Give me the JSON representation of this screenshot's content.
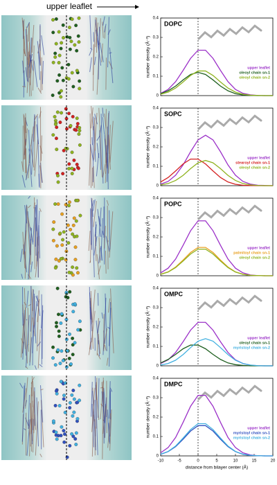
{
  "header": "upper leaflet",
  "chart_data": [
    {
      "type": "line",
      "title": "DOPC",
      "ylabel": "number density (Å⁻³)",
      "x": [
        -10,
        -8,
        -6,
        -4,
        -2,
        0,
        2,
        4,
        6,
        8,
        10,
        12,
        14,
        16,
        18,
        20
      ],
      "xlim": [
        -10,
        20
      ],
      "ylim": [
        0,
        0.4
      ],
      "yticks": [
        0,
        0.1,
        0.2,
        0.3,
        0.4
      ],
      "reference_line_x": 0,
      "series": [
        {
          "name": "upper leaflet",
          "color": "#9b30c8",
          "values": [
            0.012,
            0.032,
            0.072,
            0.13,
            0.192,
            0.234,
            0.234,
            0.192,
            0.13,
            0.072,
            0.032,
            0.012,
            0.004,
            0.001,
            0,
            0
          ]
        },
        {
          "name": "oleoyl chain sn-1",
          "color": "#1f5f1f",
          "values": [
            0.01,
            0.025,
            0.049,
            0.081,
            0.109,
            0.12,
            0.109,
            0.081,
            0.049,
            0.025,
            0.01,
            0.003,
            0.001,
            0,
            0,
            0
          ]
        },
        {
          "name": "oleoyl chain sn-2",
          "color": "#8fb31f",
          "values": [
            0.007,
            0.018,
            0.039,
            0.07,
            0.104,
            0.127,
            0.127,
            0.104,
            0.07,
            0.039,
            0.018,
            0.007,
            0.002,
            0.001,
            0,
            0
          ]
        }
      ]
    },
    {
      "type": "line",
      "title": "SOPC",
      "ylabel": "number density (Å⁻³)",
      "x": [
        -10,
        -8,
        -6,
        -4,
        -2,
        0,
        2,
        4,
        6,
        8,
        10,
        12,
        14,
        16,
        18,
        20
      ],
      "xlim": [
        -10,
        20
      ],
      "ylim": [
        0,
        0.4
      ],
      "yticks": [
        0,
        0.1,
        0.2,
        0.3,
        0.4
      ],
      "reference_line_x": 0,
      "series": [
        {
          "name": "upper leaflet",
          "color": "#9b30c8",
          "values": [
            0.008,
            0.022,
            0.054,
            0.107,
            0.175,
            0.236,
            0.26,
            0.236,
            0.175,
            0.107,
            0.054,
            0.022,
            0.008,
            0.002,
            0.001,
            0
          ]
        },
        {
          "name": "stearoyl chain sn-1",
          "color": "#d42020",
          "values": [
            0.019,
            0.042,
            0.076,
            0.112,
            0.137,
            0.137,
            0.112,
            0.076,
            0.042,
            0.019,
            0.007,
            0.002,
            0.001,
            0,
            0,
            0
          ]
        },
        {
          "name": "oleoyl chain sn-2",
          "color": "#8fb31f",
          "values": [
            0.004,
            0.011,
            0.027,
            0.053,
            0.088,
            0.118,
            0.13,
            0.118,
            0.088,
            0.053,
            0.027,
            0.011,
            0.004,
            0.001,
            0,
            0
          ]
        }
      ]
    },
    {
      "type": "line",
      "title": "POPC",
      "ylabel": "number density (Å⁻³)",
      "x": [
        -10,
        -8,
        -6,
        -4,
        -2,
        0,
        2,
        4,
        6,
        8,
        10,
        12,
        14,
        16,
        18,
        20
      ],
      "xlim": [
        -10,
        20
      ],
      "ylim": [
        0,
        0.4
      ],
      "yticks": [
        0,
        0.1,
        0.2,
        0.3,
        0.4
      ],
      "reference_line_x": 0,
      "series": [
        {
          "name": "upper leaflet",
          "color": "#9b30c8",
          "values": [
            0.015,
            0.039,
            0.086,
            0.157,
            0.232,
            0.283,
            0.283,
            0.232,
            0.157,
            0.086,
            0.039,
            0.015,
            0.004,
            0.001,
            0,
            0
          ]
        },
        {
          "name": "palmitoyl chain sn-1",
          "color": "#e8a020",
          "values": [
            0.008,
            0.02,
            0.045,
            0.081,
            0.12,
            0.146,
            0.146,
            0.12,
            0.081,
            0.045,
            0.02,
            0.008,
            0.002,
            0.001,
            0,
            0
          ]
        },
        {
          "name": "oleoyl chain sn-2",
          "color": "#8fb31f",
          "values": [
            0.007,
            0.019,
            0.042,
            0.076,
            0.112,
            0.137,
            0.137,
            0.112,
            0.076,
            0.042,
            0.019,
            0.007,
            0.002,
            0.001,
            0,
            0
          ]
        }
      ]
    },
    {
      "type": "line",
      "title": "OMPC",
      "ylabel": "number density (Å⁻³)",
      "x": [
        -10,
        -8,
        -6,
        -4,
        -2,
        0,
        2,
        4,
        6,
        8,
        10,
        12,
        14,
        16,
        18,
        20
      ],
      "xlim": [
        -10,
        20
      ],
      "ylim": [
        0,
        0.4
      ],
      "yticks": [
        0,
        0.1,
        0.2,
        0.3,
        0.4
      ],
      "reference_line_x": 0,
      "series": [
        {
          "name": "upper leaflet",
          "color": "#9b30c8",
          "values": [
            0.012,
            0.031,
            0.069,
            0.124,
            0.184,
            0.224,
            0.224,
            0.184,
            0.124,
            0.069,
            0.031,
            0.012,
            0.003,
            0.001,
            0,
            0
          ]
        },
        {
          "name": "oleoyl chain sn-1",
          "color": "#1f5f1f",
          "values": [
            0.015,
            0.033,
            0.059,
            0.088,
            0.107,
            0.107,
            0.088,
            0.059,
            0.033,
            0.015,
            0.006,
            0.002,
            0,
            0,
            0,
            0
          ]
        },
        {
          "name": "myristoyl chain sn-2",
          "color": "#40b0e0",
          "values": [
            0.004,
            0.012,
            0.029,
            0.058,
            0.094,
            0.127,
            0.14,
            0.127,
            0.094,
            0.058,
            0.029,
            0.012,
            0.004,
            0.001,
            0,
            0
          ]
        }
      ]
    },
    {
      "type": "line",
      "title": "DMPC",
      "ylabel": "number density (Å⁻³)",
      "xlabel": "distance from bilayer center (Å)",
      "x": [
        -10,
        -8,
        -6,
        -4,
        -2,
        0,
        2,
        4,
        6,
        8,
        10,
        12,
        14,
        16,
        18,
        20
      ],
      "xlim": [
        -10,
        20
      ],
      "xticks": [
        -10,
        -5,
        0,
        5,
        10,
        15,
        20
      ],
      "ylim": [
        0,
        0.4
      ],
      "yticks": [
        0,
        0.1,
        0.2,
        0.3,
        0.4
      ],
      "reference_line_x": 0,
      "series": [
        {
          "name": "upper leaflet",
          "color": "#9b30c8",
          "values": [
            0.016,
            0.043,
            0.095,
            0.173,
            0.256,
            0.312,
            0.312,
            0.256,
            0.173,
            0.095,
            0.043,
            0.016,
            0.005,
            0.001,
            0,
            0
          ]
        },
        {
          "name": "myristoyl chain sn-1",
          "color": "#3050c0",
          "values": [
            0.008,
            0.022,
            0.048,
            0.086,
            0.128,
            0.156,
            0.156,
            0.128,
            0.086,
            0.048,
            0.022,
            0.008,
            0.002,
            0.001,
            0,
            0
          ]
        },
        {
          "name": "myristoyl chain sn-2",
          "color": "#40b0e0",
          "values": [
            0.009,
            0.023,
            0.051,
            0.092,
            0.136,
            0.166,
            0.166,
            0.136,
            0.092,
            0.051,
            0.023,
            0.009,
            0.003,
            0.001,
            0,
            0
          ]
        }
      ]
    }
  ]
}
